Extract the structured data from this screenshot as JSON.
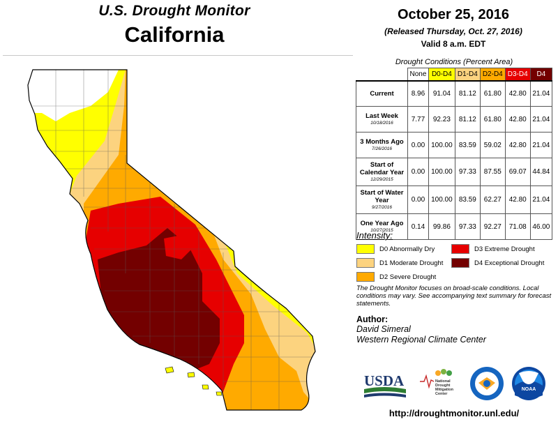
{
  "header": {
    "title": "U.S. Drought Monitor",
    "region": "California",
    "date": "October 25, 2016",
    "released": "(Released Thursday, Oct. 27, 2016)",
    "valid": "Valid 8 a.m. EDT"
  },
  "table": {
    "title": "Drought Conditions (Percent Area)",
    "columns": [
      "None",
      "D0-D4",
      "D1-D4",
      "D2-D4",
      "D3-D4",
      "D4"
    ],
    "column_colors": [
      "#ffffff",
      "#ffff00",
      "#fcd37f",
      "#ffaa00",
      "#e60000",
      "#730000"
    ],
    "rows": [
      {
        "label": "Current",
        "sub": "",
        "values": [
          "8.96",
          "91.04",
          "81.12",
          "61.80",
          "42.80",
          "21.04"
        ]
      },
      {
        "label": "Last Week",
        "sub": "10/18/2016",
        "values": [
          "7.77",
          "92.23",
          "81.12",
          "61.80",
          "42.80",
          "21.04"
        ]
      },
      {
        "label": "3 Months Ago",
        "sub": "7/26/2016",
        "values": [
          "0.00",
          "100.00",
          "83.59",
          "59.02",
          "42.80",
          "21.04"
        ]
      },
      {
        "label": "Start of Calendar Year",
        "sub": "12/29/2015",
        "values": [
          "0.00",
          "100.00",
          "97.33",
          "87.55",
          "69.07",
          "44.84"
        ]
      },
      {
        "label": "Start of Water Year",
        "sub": "9/27/2016",
        "values": [
          "0.00",
          "100.00",
          "83.59",
          "62.27",
          "42.80",
          "21.04"
        ]
      },
      {
        "label": "One Year Ago",
        "sub": "10/27/2015",
        "values": [
          "0.14",
          "99.86",
          "97.33",
          "92.27",
          "71.08",
          "46.00"
        ]
      }
    ]
  },
  "legend": {
    "title": "Intensity:",
    "items": [
      {
        "label": "D0 Abnormally Dry",
        "color": "#ffff00"
      },
      {
        "label": "D1 Moderate Drought",
        "color": "#fcd37f"
      },
      {
        "label": "D2 Severe Drought",
        "color": "#ffaa00"
      },
      {
        "label": "D3 Extreme Drought",
        "color": "#e60000"
      },
      {
        "label": "D4 Exceptional Drought",
        "color": "#730000"
      }
    ]
  },
  "note": "The Drought Monitor focuses on broad-scale conditions. Local conditions may vary. See accompanying text summary for forecast statements.",
  "author": {
    "heading": "Author:",
    "name": "David Simeral",
    "org": "Western Regional Climate Center"
  },
  "logos": {
    "usda": "USDA",
    "ndmc": [
      "National",
      "Drought",
      "Mitigation",
      "Center"
    ],
    "noaa": "NOAA"
  },
  "url": "http://droughtmonitor.unl.edu/"
}
